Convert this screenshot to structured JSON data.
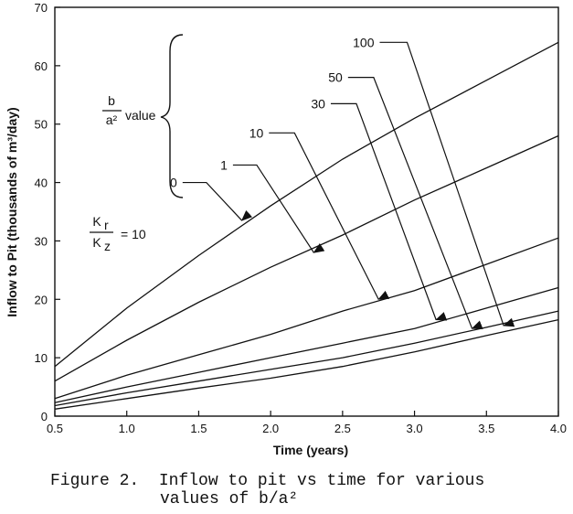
{
  "chart_data": {
    "type": "line",
    "xlabel": "Time (years)",
    "ylabel": "Inflow to Pit (thousands of m³/day)",
    "xlim": [
      0.5,
      4.0
    ],
    "ylim": [
      0,
      70
    ],
    "xticks": [
      "0.5",
      "1.0",
      "1.5",
      "2.0",
      "2.5",
      "3.0",
      "3.5",
      "4.0"
    ],
    "yticks": [
      "0",
      "10",
      "20",
      "30",
      "40",
      "50",
      "60",
      "70"
    ],
    "grid": false,
    "series": [
      {
        "name": "0",
        "x": [
          0.5,
          1.0,
          1.5,
          2.0,
          2.5,
          3.0,
          3.5,
          4.0
        ],
        "y": [
          8.5,
          18.5,
          27.5,
          36.0,
          44.0,
          51.0,
          57.5,
          64.0
        ]
      },
      {
        "name": "1",
        "x": [
          0.5,
          1.0,
          1.5,
          2.0,
          2.5,
          3.0,
          3.5,
          4.0
        ],
        "y": [
          6.0,
          13.0,
          19.5,
          25.5,
          31.0,
          37.0,
          42.5,
          48.0
        ]
      },
      {
        "name": "10",
        "x": [
          0.5,
          1.0,
          1.5,
          2.0,
          2.5,
          3.0,
          3.5,
          4.0
        ],
        "y": [
          3.0,
          7.0,
          10.5,
          14.0,
          18.0,
          21.5,
          26.0,
          30.5
        ]
      },
      {
        "name": "30",
        "x": [
          0.5,
          1.0,
          1.5,
          2.0,
          2.5,
          3.0,
          3.5,
          4.0
        ],
        "y": [
          2.3,
          5.0,
          7.5,
          10.0,
          12.5,
          15.0,
          18.5,
          22.0
        ]
      },
      {
        "name": "50",
        "x": [
          0.5,
          1.0,
          1.5,
          2.0,
          2.5,
          3.0,
          3.5,
          4.0
        ],
        "y": [
          1.8,
          4.0,
          6.0,
          8.0,
          10.0,
          12.5,
          15.2,
          18.0
        ]
      },
      {
        "name": "100",
        "x": [
          0.5,
          1.0,
          1.5,
          2.0,
          2.5,
          3.0,
          3.5,
          4.0
        ],
        "y": [
          1.2,
          3.0,
          4.8,
          6.5,
          8.5,
          11.0,
          13.8,
          16.5
        ]
      }
    ],
    "annotations": {
      "legend_title_num": "b",
      "legend_title_den": "a²",
      "legend_title_suffix": "value",
      "ratio_num": "K",
      "ratio_num_sub": "r",
      "ratio_den": "K",
      "ratio_den_sub": "z",
      "ratio_value": "= 10",
      "arrows": [
        {
          "label": "0",
          "label_x": 1.35,
          "label_y": 40.0,
          "tip_x": 1.8,
          "tip_y": 33.5
        },
        {
          "label": "1",
          "label_x": 1.7,
          "label_y": 43.0,
          "tip_x": 2.3,
          "tip_y": 28.0
        },
        {
          "label": "10",
          "label_x": 1.95,
          "label_y": 48.5,
          "tip_x": 2.75,
          "tip_y": 20.0
        },
        {
          "label": "30",
          "label_x": 2.38,
          "label_y": 53.5,
          "tip_x": 3.15,
          "tip_y": 16.5
        },
        {
          "label": "50",
          "label_x": 2.5,
          "label_y": 58.0,
          "tip_x": 3.4,
          "tip_y": 15.0
        },
        {
          "label": "100",
          "label_x": 2.72,
          "label_y": 64.0,
          "tip_x": 3.62,
          "tip_y": 15.5
        }
      ]
    }
  },
  "caption": {
    "line1": "Figure 2.  Inflow to pit vs time for various",
    "line2": "values of b/a²"
  }
}
